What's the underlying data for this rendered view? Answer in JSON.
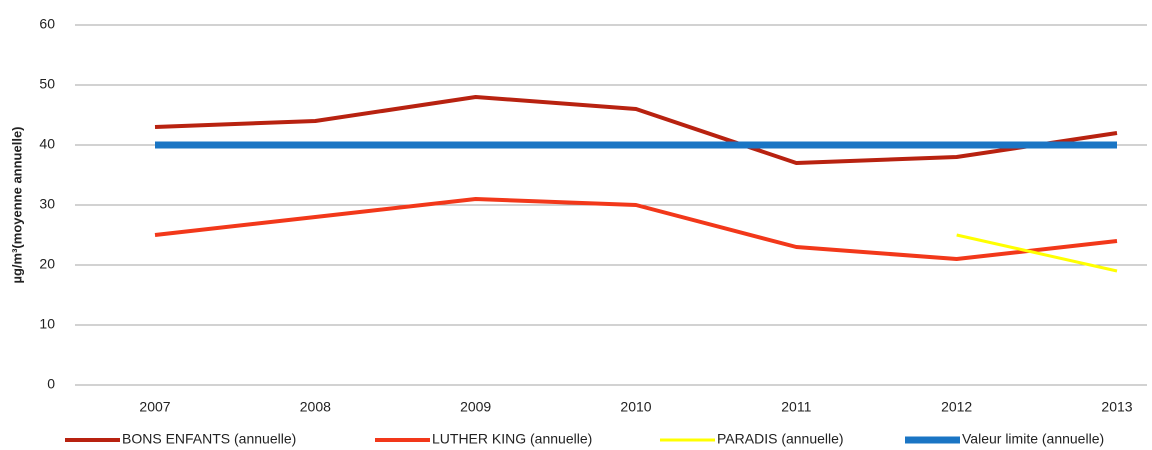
{
  "chart_data": {
    "type": "line",
    "y_label": "µg/m³(moyenne annuelle)",
    "categories": [
      "2007",
      "2008",
      "2009",
      "2010",
      "2011",
      "2012",
      "2013"
    ],
    "series": [
      {
        "name": "BONS ENFANTS (annuelle)",
        "color": "#b82210",
        "width": 4,
        "values": [
          43,
          44,
          48,
          46,
          37,
          38,
          42
        ]
      },
      {
        "name": "LUTHER KING (annuelle)",
        "color": "#f2381a",
        "width": 4,
        "values": [
          25,
          28,
          31,
          30,
          23,
          21,
          24
        ]
      },
      {
        "name": "PARADIS (annuelle)",
        "color": "#ffff00",
        "width": 3,
        "values": [
          null,
          null,
          null,
          null,
          null,
          25,
          19
        ]
      },
      {
        "name": "Valeur limite (annuelle)",
        "color": "#1a75c4",
        "width": 7,
        "values": [
          40,
          40,
          40,
          40,
          40,
          40,
          40
        ]
      }
    ],
    "ylim": [
      0,
      60
    ],
    "yticks": [
      0,
      10,
      20,
      30,
      40,
      50,
      60
    ],
    "grid": true,
    "legend": "bottom"
  }
}
